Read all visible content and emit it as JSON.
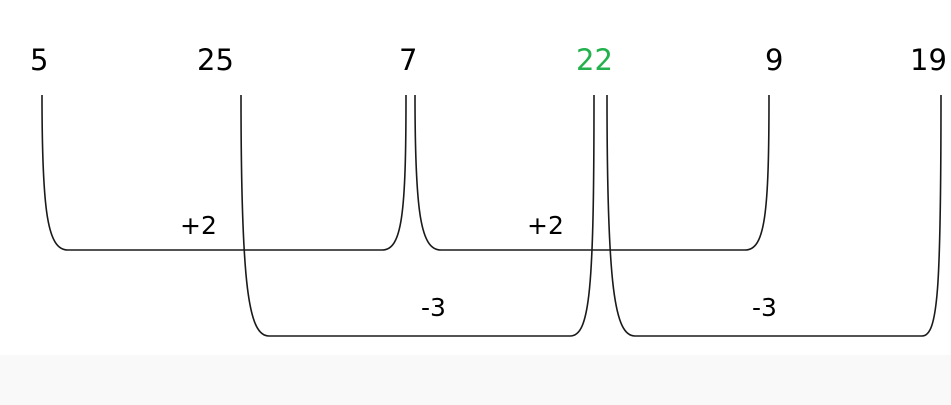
{
  "sequence": [
    {
      "value": "5",
      "color": "#000000"
    },
    {
      "value": "25",
      "color": "#000000"
    },
    {
      "value": "7",
      "color": "#000000"
    },
    {
      "value": "22",
      "color": "#22b14c"
    },
    {
      "value": "9",
      "color": "#000000"
    },
    {
      "value": "19",
      "color": "#000000"
    }
  ],
  "differences": [
    {
      "from_index": 0,
      "to_index": 2,
      "label": "+2"
    },
    {
      "from_index": 2,
      "to_index": 4,
      "label": "+2"
    },
    {
      "from_index": 1,
      "to_index": 3,
      "label": "-3"
    },
    {
      "from_index": 3,
      "to_index": 5,
      "label": "-3"
    }
  ],
  "colors": {
    "line": "#1a1a1a",
    "highlight": "#22b14c",
    "bottom_band": "#f9f9f9"
  }
}
